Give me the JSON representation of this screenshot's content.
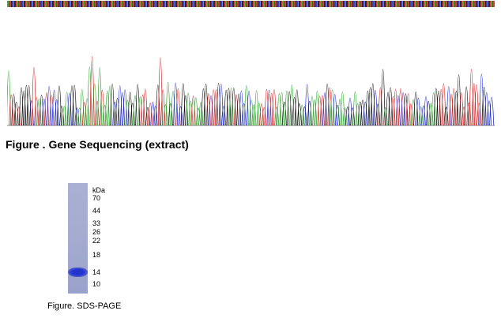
{
  "sequencing": {
    "caption": "Figure . Gene Sequencing (extract)",
    "trace_colors": [
      "#2aa52a",
      "#1f2bd6",
      "#d82020",
      "#111111"
    ]
  },
  "sds_page": {
    "caption": "Figure. SDS-PAGE",
    "unit_label": "kDa",
    "markers": [
      "70",
      "44",
      "33",
      "26",
      "22",
      "18",
      "14",
      "10"
    ],
    "lane_color": "#a6acd0",
    "band_color": "#2638cf"
  }
}
